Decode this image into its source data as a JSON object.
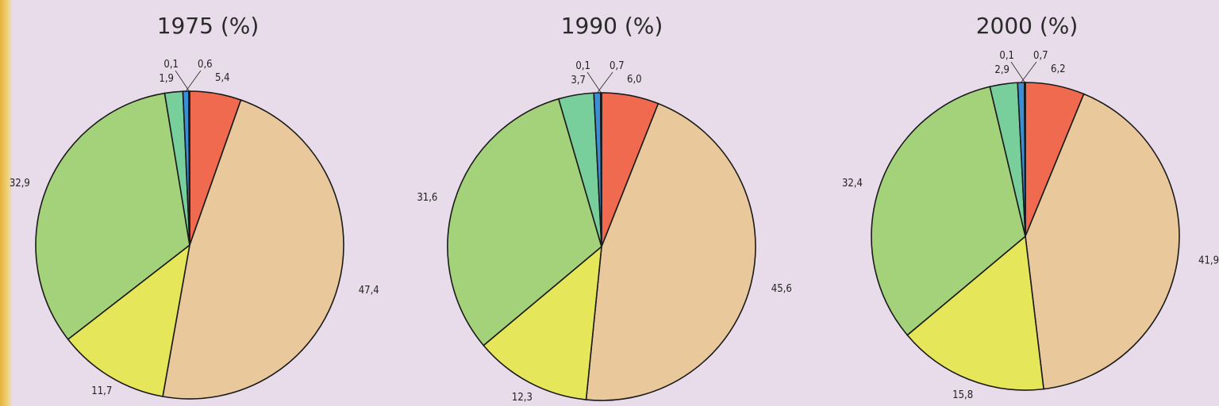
{
  "colors": {
    "background": "#e8dcea",
    "slice_colors": [
      "#f06a4f",
      "#e9c89b",
      "#e6e65a",
      "#a4d27a",
      "#78cf9c",
      "#3a8fd6",
      "#5a5a5a"
    ]
  },
  "chart_data": [
    {
      "type": "pie",
      "title": "1975 (%)",
      "slices": [
        {
          "value": 5.4,
          "label": "5,4",
          "color": "#f06a4f"
        },
        {
          "value": 47.4,
          "label": "47,4",
          "color": "#e9c89b"
        },
        {
          "value": 11.7,
          "label": "11,7",
          "color": "#e6e65a"
        },
        {
          "value": 32.9,
          "label": "32,9",
          "color": "#a4d27a"
        },
        {
          "value": 1.9,
          "label": "1,9",
          "color": "#78cf9c"
        },
        {
          "value": 0.6,
          "label": "0,6",
          "color": "#3a8fd6"
        },
        {
          "value": 0.1,
          "label": "0,1",
          "color": "#5a5a5a"
        }
      ]
    },
    {
      "type": "pie",
      "title": "1990 (%)",
      "slices": [
        {
          "value": 6.0,
          "label": "6,0",
          "color": "#f06a4f"
        },
        {
          "value": 45.6,
          "label": "45,6",
          "color": "#e9c89b"
        },
        {
          "value": 12.3,
          "label": "12,3",
          "color": "#e6e65a"
        },
        {
          "value": 31.6,
          "label": "31,6",
          "color": "#a4d27a"
        },
        {
          "value": 3.7,
          "label": "3,7",
          "color": "#78cf9c"
        },
        {
          "value": 0.7,
          "label": "0,7",
          "color": "#3a8fd6"
        },
        {
          "value": 0.1,
          "label": "0,1",
          "color": "#5a5a5a"
        }
      ]
    },
    {
      "type": "pie",
      "title": "2000 (%)",
      "slices": [
        {
          "value": 6.2,
          "label": "6,2",
          "color": "#f06a4f"
        },
        {
          "value": 41.9,
          "label": "41,9",
          "color": "#e9c89b"
        },
        {
          "value": 15.8,
          "label": "15,8",
          "color": "#e6e65a"
        },
        {
          "value": 32.4,
          "label": "32,4",
          "color": "#a4d27a"
        },
        {
          "value": 2.9,
          "label": "2,9",
          "color": "#78cf9c"
        },
        {
          "value": 0.7,
          "label": "0,7",
          "color": "#3a8fd6"
        },
        {
          "value": 0.1,
          "label": "0,1",
          "color": "#5a5a5a"
        }
      ]
    }
  ]
}
